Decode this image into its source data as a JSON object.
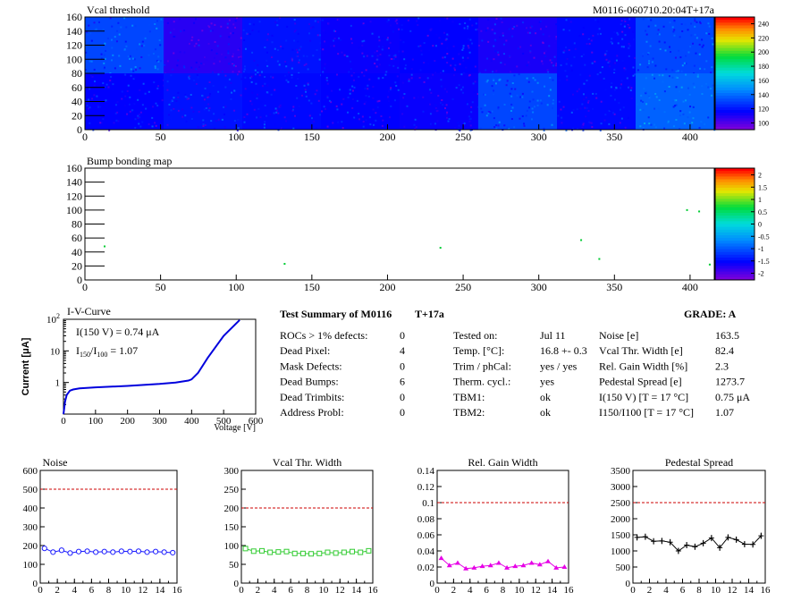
{
  "colors": {
    "frame": "#000000",
    "grid": "#000000",
    "threshold_line": "#cc0000",
    "noise": "#1a1aff",
    "vcal": "#33cc33",
    "gain": "#e600e6",
    "ped": "#000000",
    "iv": "#0000dd"
  },
  "chart_data": [
    {
      "id": "vcal-threshold",
      "type": "heatmap",
      "title": "Vcal threshold",
      "annotation": "M0116-060710.20:04T+17a",
      "xlim": [
        0,
        416
      ],
      "ylim": [
        0,
        160
      ],
      "xticks": [
        0,
        50,
        100,
        150,
        200,
        250,
        300,
        350,
        400
      ],
      "yticks": [
        0,
        20,
        40,
        60,
        80,
        100,
        120,
        140,
        160
      ],
      "zticks": [
        100,
        120,
        140,
        160,
        180,
        200,
        220,
        240
      ],
      "roc_columns": 8,
      "roc_rows": 2,
      "roc_mean": [
        [
          110,
          80,
          95,
          88,
          90,
          84,
          92,
          110
        ],
        [
          90,
          95,
          92,
          90,
          88,
          110,
          92,
          118
        ]
      ]
    },
    {
      "id": "bump-bonding",
      "type": "heatmap",
      "title": "Bump bonding map",
      "xlim": [
        0,
        416
      ],
      "ylim": [
        0,
        160
      ],
      "xticks": [
        0,
        50,
        100,
        150,
        200,
        250,
        300,
        350,
        400
      ],
      "yticks": [
        0,
        20,
        40,
        60,
        80,
        100,
        120,
        140,
        160
      ],
      "zticks": [
        2,
        1.5,
        1,
        0.5,
        0,
        -0.5,
        -1,
        -1.5,
        -2
      ],
      "defect_points": [
        [
          13,
          48
        ],
        [
          132,
          23
        ],
        [
          235,
          46
        ],
        [
          328,
          57
        ],
        [
          340,
          30
        ],
        [
          398,
          100
        ],
        [
          406,
          98
        ],
        [
          413,
          22
        ]
      ]
    },
    {
      "id": "iv-curve",
      "type": "line",
      "title": "I-V-Curve",
      "xlabel": "Voltage [V]",
      "ylabel": "Current [μA]",
      "xticks": [
        0,
        100,
        200,
        300,
        400,
        500,
        600
      ],
      "x": [
        0,
        5,
        10,
        20,
        30,
        50,
        100,
        200,
        300,
        350,
        390,
        400,
        420,
        450,
        500,
        550
      ],
      "y": [
        0.1,
        0.25,
        0.4,
        0.55,
        0.6,
        0.65,
        0.7,
        0.78,
        0.9,
        1.0,
        1.15,
        1.25,
        2.0,
        6.0,
        30,
        95
      ],
      "legend_line1": "I(150 V) = 0.74 μA",
      "legend_line2_ratio": "I150/I100",
      "legend_line2_value": "= 1.07"
    },
    {
      "id": "noise",
      "type": "line",
      "title": "Noise",
      "xlim": [
        0,
        16
      ],
      "ylim": [
        0,
        600
      ],
      "xticks": [
        0,
        2,
        4,
        6,
        8,
        10,
        12,
        14,
        16
      ],
      "yticks": [
        0,
        100,
        200,
        300,
        400,
        500,
        600
      ],
      "threshold": 500,
      "x": [
        0.5,
        1.5,
        2.5,
        3.5,
        4.5,
        5.5,
        6.5,
        7.5,
        8.5,
        9.5,
        10.5,
        11.5,
        12.5,
        13.5,
        14.5,
        15.5
      ],
      "values": [
        185,
        165,
        175,
        160,
        168,
        170,
        165,
        168,
        165,
        170,
        168,
        170,
        165,
        168,
        165,
        162
      ]
    },
    {
      "id": "vcal-thr-width",
      "type": "line",
      "title": "Vcal Thr. Width",
      "xlim": [
        0,
        16
      ],
      "ylim": [
        0,
        300
      ],
      "xticks": [
        0,
        2,
        4,
        6,
        8,
        10,
        12,
        14,
        16
      ],
      "yticks": [
        0,
        50,
        100,
        150,
        200,
        250,
        300
      ],
      "threshold": 200,
      "x": [
        0.5,
        1.5,
        2.5,
        3.5,
        4.5,
        5.5,
        6.5,
        7.5,
        8.5,
        9.5,
        10.5,
        11.5,
        12.5,
        13.5,
        14.5,
        15.5
      ],
      "values": [
        92,
        85,
        86,
        82,
        83,
        84,
        79,
        79,
        78,
        79,
        82,
        80,
        82,
        84,
        82,
        86
      ]
    },
    {
      "id": "rel-gain-width",
      "type": "line",
      "title": "Rel. Gain Width",
      "xlim": [
        0,
        16
      ],
      "ylim": [
        0,
        0.14
      ],
      "xticks": [
        0,
        2,
        4,
        6,
        8,
        10,
        12,
        14,
        16
      ],
      "yticks": [
        0,
        0.02,
        0.04,
        0.06,
        0.08,
        0.1,
        0.12,
        0.14
      ],
      "threshold": 0.1,
      "x": [
        0.5,
        1.5,
        2.5,
        3.5,
        4.5,
        5.5,
        6.5,
        7.5,
        8.5,
        9.5,
        10.5,
        11.5,
        12.5,
        13.5,
        14.5,
        15.5
      ],
      "values": [
        0.031,
        0.022,
        0.025,
        0.018,
        0.019,
        0.021,
        0.022,
        0.025,
        0.019,
        0.021,
        0.022,
        0.025,
        0.023,
        0.027,
        0.019,
        0.02
      ]
    },
    {
      "id": "pedestal-spread",
      "type": "line",
      "title": "Pedestal Spread",
      "xlim": [
        0,
        16
      ],
      "ylim": [
        0,
        3500
      ],
      "xticks": [
        0,
        2,
        4,
        6,
        8,
        10,
        12,
        14,
        16
      ],
      "yticks": [
        0,
        500,
        1000,
        1500,
        2000,
        2500,
        3000,
        3500
      ],
      "threshold": 2500,
      "x": [
        0.5,
        1.5,
        2.5,
        3.5,
        4.5,
        5.5,
        6.5,
        7.5,
        8.5,
        9.5,
        10.5,
        11.5,
        12.5,
        13.5,
        14.5,
        15.5
      ],
      "values": [
        1420,
        1440,
        1300,
        1310,
        1270,
        1000,
        1180,
        1130,
        1240,
        1400,
        1100,
        1420,
        1350,
        1210,
        1200,
        1470
      ]
    }
  ],
  "summary": {
    "title": "Test Summary of M0116",
    "tag": "T+17a",
    "grade": "GRADE:  A",
    "col1": [
      {
        "label": "ROCs > 1% defects:",
        "value": "0"
      },
      {
        "label": "Dead Pixel:",
        "value": "4"
      },
      {
        "label": "Mask Defects:",
        "value": "0"
      },
      {
        "label": "Dead Bumps:",
        "value": "6"
      },
      {
        "label": "Dead Trimbits:",
        "value": "0"
      },
      {
        "label": "Address Probl:",
        "value": "0"
      }
    ],
    "col2": [
      {
        "label": "Tested on:",
        "value": "Jul 11"
      },
      {
        "label": "Temp. [°C]:",
        "value": "16.8 +- 0.3"
      },
      {
        "label": "Trim / phCal:",
        "value": "yes / yes"
      },
      {
        "label": "Therm. cycl.:",
        "value": "yes"
      },
      {
        "label": "TBM1:",
        "value": "ok"
      },
      {
        "label": "TBM2:",
        "value": "ok"
      }
    ],
    "col3": [
      {
        "label": "Noise [e]",
        "value": "163.5"
      },
      {
        "label": "Vcal Thr. Width [e]",
        "value": "82.4"
      },
      {
        "label": "Rel. Gain Width [%]",
        "value": "2.3"
      },
      {
        "label": "Pedestal Spread [e]",
        "value": "1273.7"
      },
      {
        "label": "I(150 V) [T = 17 °C]",
        "value": "0.75 μA"
      },
      {
        "label": "I150/I100   [T = 17 °C]",
        "value": "1.07"
      }
    ]
  }
}
